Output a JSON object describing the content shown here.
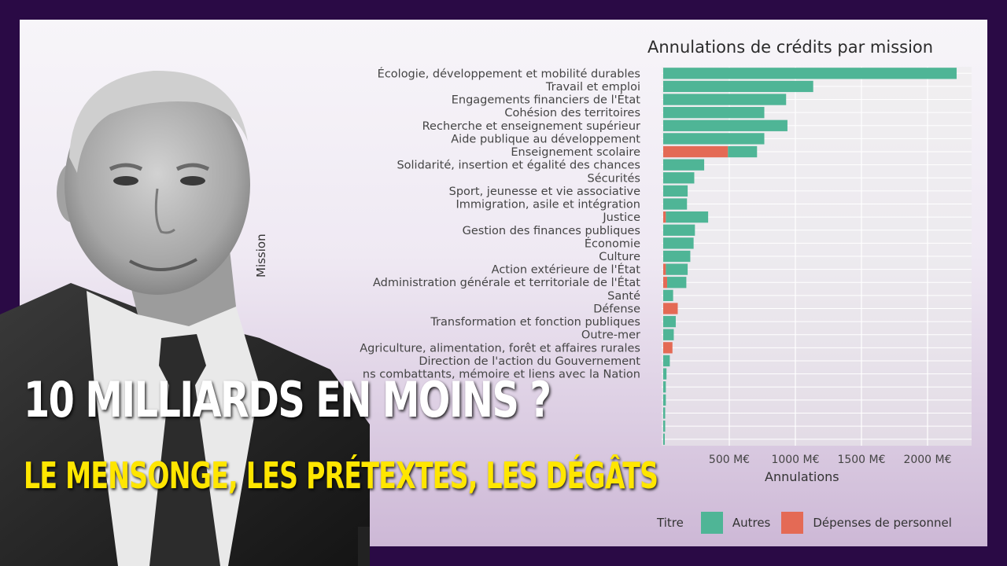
{
  "headline": {
    "line1": "10 MILLIARDS EN MOINS ?",
    "line2": "LE MENSONGE, LES PRÉTEXTES, LES DÉGÂTS"
  },
  "colors": {
    "background": "#2a0a45",
    "autres": "#4fb596",
    "personnel": "#e46a55",
    "headline1": "#ffffff",
    "headline2": "#ffe600"
  },
  "chart_data": {
    "type": "bar",
    "orientation": "horizontal",
    "stacked": true,
    "title": "Annulations de crédits par mission",
    "xlabel": "Annulations",
    "ylabel": "Mission",
    "x_ticks": [
      "500 M€",
      "1000 M€",
      "1500 M€",
      "2000 M€"
    ],
    "x_tick_values": [
      500,
      1000,
      1500,
      2000
    ],
    "xlim": [
      0,
      2350
    ],
    "grid": true,
    "legend": {
      "title": "Titre",
      "position": "bottom-right",
      "entries": [
        "Autres",
        "Dépenses de personnel"
      ]
    },
    "categories": [
      "Écologie, développement et mobilité durables",
      "Travail et emploi",
      "Engagements financiers de l'État",
      "Cohésion des territoires",
      "Recherche et enseignement supérieur",
      "Aide publique au développement",
      "Enseignement scolaire",
      "Solidarité, insertion et égalité des chances",
      "Sécurités",
      "Sport, jeunesse et vie associative",
      "Immigration, asile et intégration",
      "Justice",
      "Gestion des finances publiques",
      "Économie",
      "Culture",
      "Action extérieure de l'État",
      "Administration générale et territoriale de l'État",
      "Santé",
      "Défense",
      "Transformation et fonction publiques",
      "Outre-mer",
      "Agriculture, alimentation, forêt et affaires rurales",
      "Direction de l'action du Gouvernement",
      "ns combattants, mémoire et liens avec la Nation",
      "",
      "",
      "",
      "",
      ""
    ],
    "series": [
      {
        "name": "Dépenses de personnel",
        "values": [
          0,
          0,
          0,
          0,
          0,
          0,
          490,
          0,
          0,
          0,
          0,
          20,
          0,
          0,
          0,
          20,
          30,
          0,
          110,
          0,
          0,
          70,
          0,
          0,
          0,
          0,
          0,
          0,
          0
        ]
      },
      {
        "name": "Autres",
        "values": [
          2220,
          1135,
          930,
          765,
          940,
          765,
          220,
          310,
          235,
          185,
          180,
          320,
          240,
          230,
          205,
          165,
          145,
          75,
          0,
          95,
          80,
          0,
          50,
          25,
          20,
          20,
          15,
          15,
          12
        ]
      }
    ]
  }
}
